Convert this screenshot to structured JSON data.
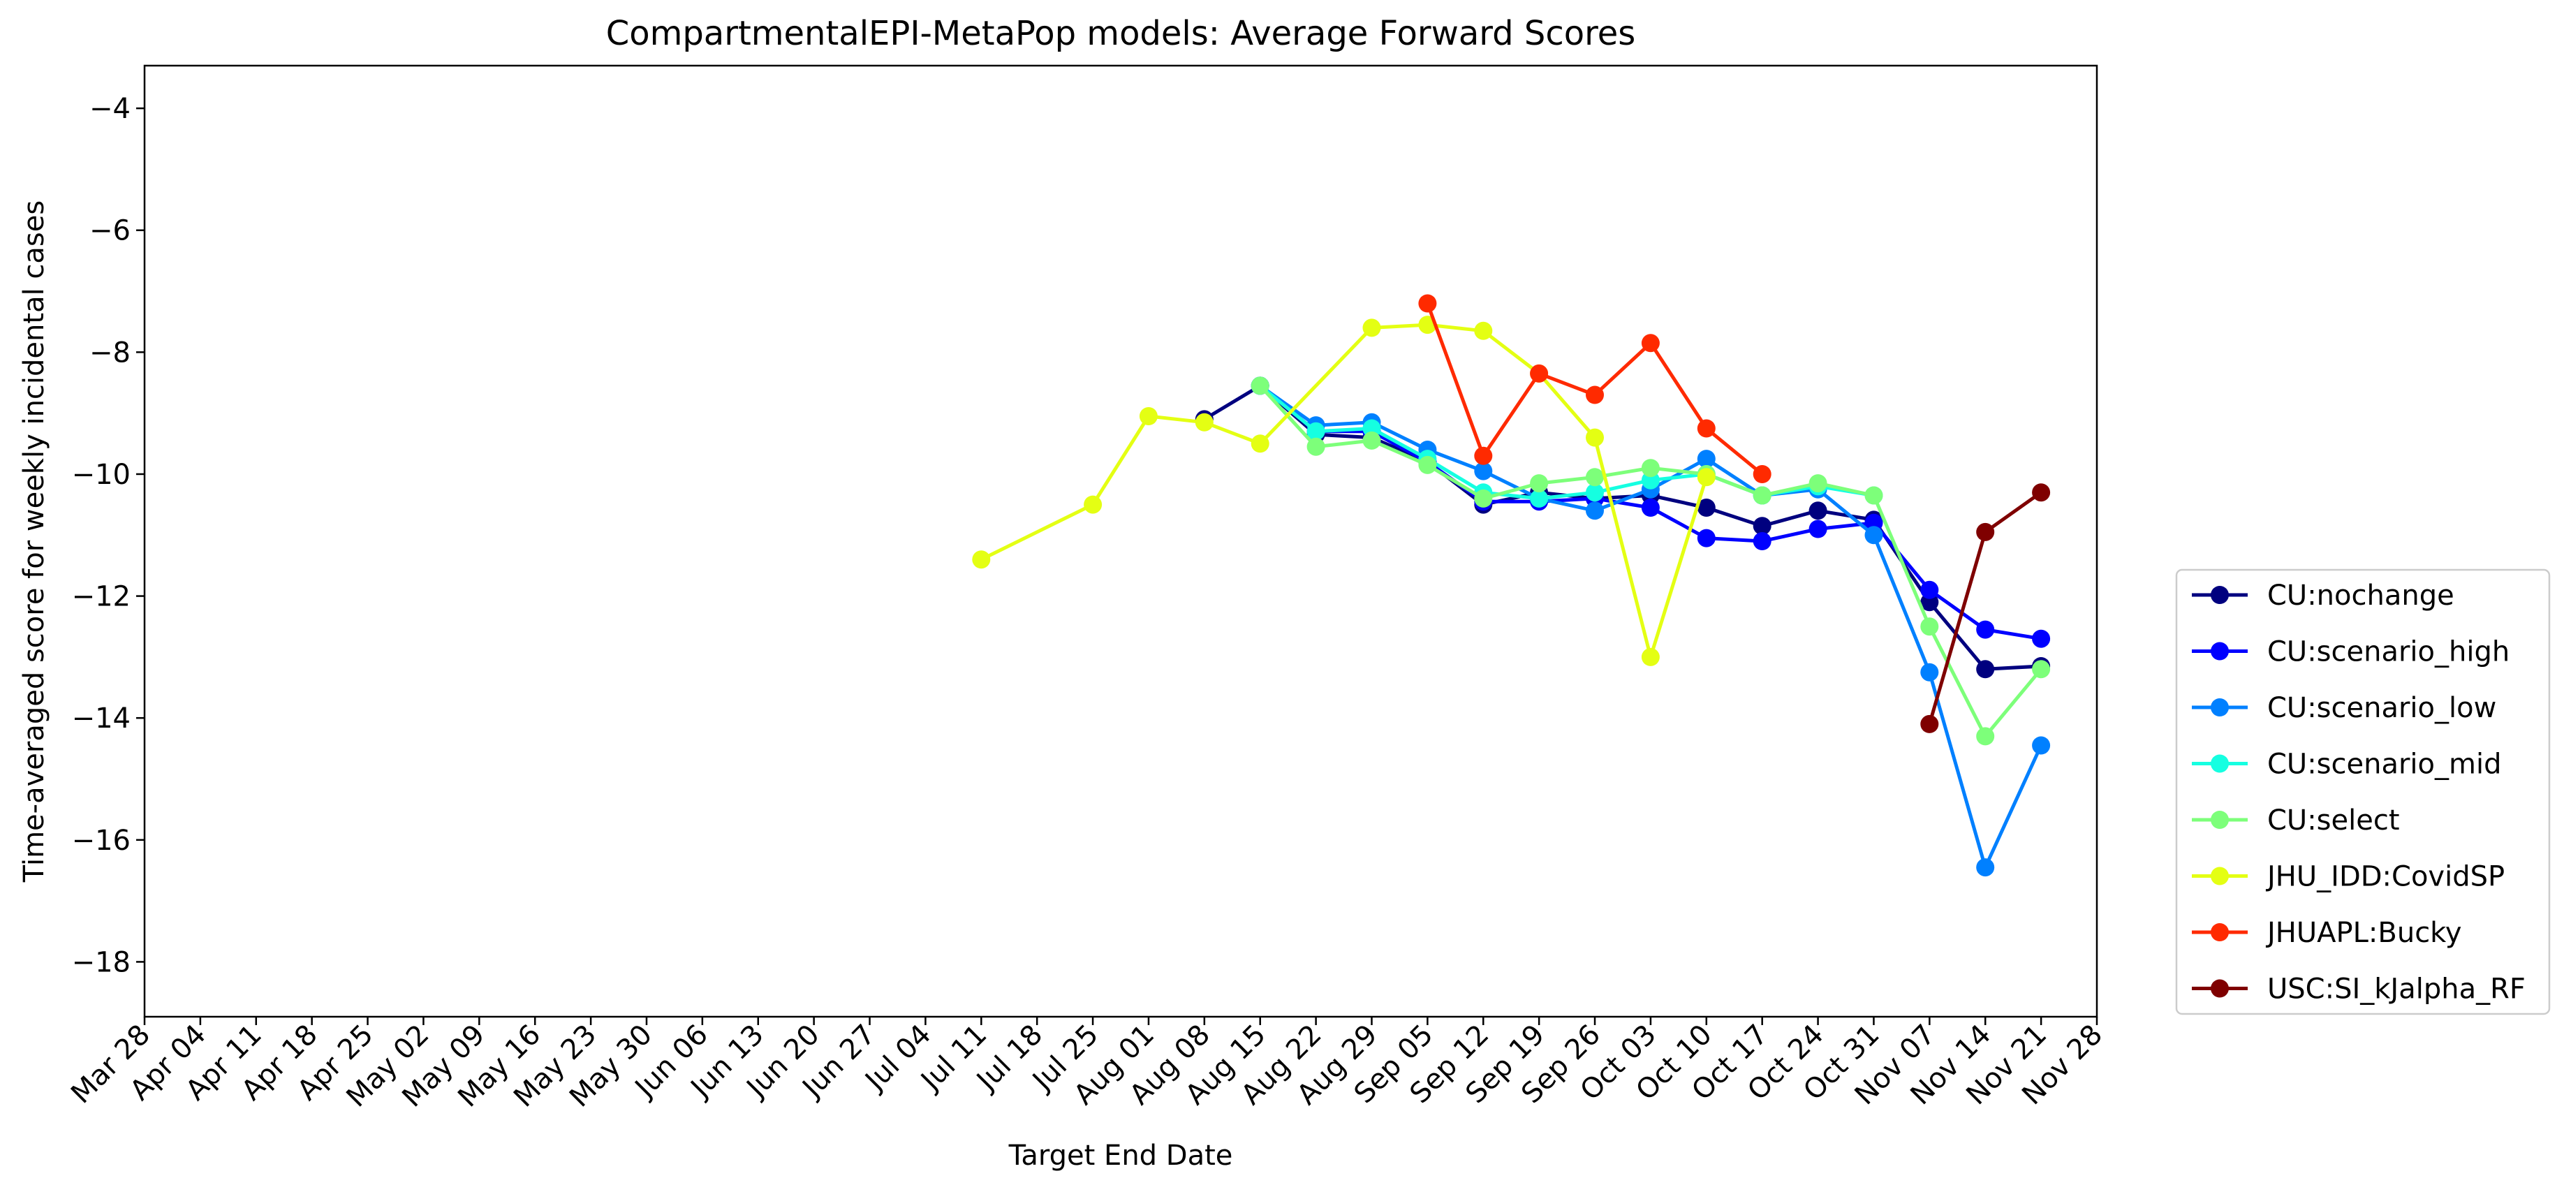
{
  "chart_data": {
    "type": "line",
    "title": "CompartmentalEPI-MetaPop models: Average Forward Scores",
    "xlabel": "Target End Date",
    "ylabel": "Time-averaged score for weekly incidental cases",
    "x_ticks": [
      "Mar 28",
      "Apr 04",
      "Apr 11",
      "Apr 18",
      "Apr 25",
      "May 02",
      "May 09",
      "May 16",
      "May 23",
      "May 30",
      "Jun 06",
      "Jun 13",
      "Jun 20",
      "Jun 27",
      "Jul 04",
      "Jul 11",
      "Jul 18",
      "Jul 25",
      "Aug 01",
      "Aug 08",
      "Aug 15",
      "Aug 22",
      "Aug 29",
      "Sep 05",
      "Sep 12",
      "Sep 19",
      "Sep 26",
      "Oct 03",
      "Oct 10",
      "Oct 17",
      "Oct 24",
      "Oct 31",
      "Nov 07",
      "Nov 14",
      "Nov 21",
      "Nov 28"
    ],
    "y_ticks": [
      "−4",
      "−6",
      "−8",
      "−10",
      "−12",
      "−14",
      "−16",
      "−18"
    ],
    "y_tick_values": [
      -4,
      -6,
      -8,
      -10,
      -12,
      -14,
      -16,
      -18
    ],
    "ylim": [
      -18.9,
      -3.3
    ],
    "xlim": [
      "Mar 28",
      "Nov 28"
    ],
    "grid": false,
    "legend_position": "right, outside plot (center-right)",
    "series": [
      {
        "name": "CU:nochange",
        "color": "#00007f",
        "x": [
          "Aug 08",
          "Aug 15",
          "Aug 22",
          "Aug 29",
          "Sep 05",
          "Sep 12",
          "Sep 19",
          "Sep 26",
          "Oct 03",
          "Oct 10",
          "Oct 17",
          "Oct 24",
          "Oct 31",
          "Nov 07",
          "Nov 14",
          "Nov 21"
        ],
        "y": [
          -9.1,
          -8.55,
          -9.35,
          -9.4,
          -9.8,
          -10.5,
          -10.3,
          -10.4,
          -10.35,
          -10.55,
          -10.85,
          -10.6,
          -10.75,
          -12.1,
          -13.2,
          -13.15
        ]
      },
      {
        "name": "CU:scenario_high",
        "color": "#0000ff",
        "x": [
          "Aug 15",
          "Aug 22",
          "Aug 29",
          "Sep 05",
          "Sep 12",
          "Sep 19",
          "Sep 26",
          "Oct 03",
          "Oct 10",
          "Oct 17",
          "Oct 24",
          "Oct 31",
          "Nov 07",
          "Nov 14",
          "Nov 21"
        ],
        "y": [
          -8.55,
          -9.3,
          -9.3,
          -9.8,
          -10.45,
          -10.45,
          -10.4,
          -10.55,
          -11.05,
          -11.1,
          -10.9,
          -10.8,
          -11.9,
          -12.55,
          -12.7
        ]
      },
      {
        "name": "CU:scenario_low",
        "color": "#0080ff",
        "x": [
          "Aug 15",
          "Aug 22",
          "Aug 29",
          "Sep 05",
          "Sep 12",
          "Sep 19",
          "Sep 26",
          "Oct 03",
          "Oct 10",
          "Oct 17",
          "Oct 24",
          "Oct 31",
          "Nov 07",
          "Nov 14",
          "Nov 21"
        ],
        "y": [
          -8.55,
          -9.2,
          -9.15,
          -9.6,
          -9.95,
          -10.4,
          -10.6,
          -10.25,
          -9.75,
          -10.35,
          -10.25,
          -11.0,
          -13.25,
          -16.45,
          -14.45
        ]
      },
      {
        "name": "CU:scenario_mid",
        "color": "#15ffe1",
        "x": [
          "Aug 15",
          "Aug 22",
          "Aug 29",
          "Sep 05",
          "Sep 12",
          "Sep 19",
          "Sep 26",
          "Oct 03",
          "Oct 10",
          "Oct 17",
          "Oct 24",
          "Oct 31"
        ],
        "y": [
          -8.55,
          -9.3,
          -9.25,
          -9.75,
          -10.3,
          -10.4,
          -10.3,
          -10.1,
          -10.0,
          -10.35,
          -10.2,
          -10.35
        ]
      },
      {
        "name": "CU:select",
        "color": "#7dff7a",
        "x": [
          "Aug 15",
          "Aug 22",
          "Aug 29",
          "Sep 05",
          "Sep 12",
          "Sep 19",
          "Sep 26",
          "Oct 03",
          "Oct 10",
          "Oct 17",
          "Oct 24",
          "Oct 31",
          "Nov 07",
          "Nov 14",
          "Nov 21"
        ],
        "y": [
          -8.55,
          -9.55,
          -9.45,
          -9.85,
          -10.4,
          -10.15,
          -10.05,
          -9.9,
          -10.0,
          -10.35,
          -10.15,
          -10.35,
          -12.5,
          -14.3,
          -13.2
        ]
      },
      {
        "name": "JHU_IDD:CovidSP",
        "color": "#e4ff13",
        "x": [
          "Jul 11",
          "Jul 25",
          "Aug 01",
          "Aug 08",
          "Aug 15",
          "Aug 29",
          "Sep 05",
          "Sep 12",
          "Sep 19",
          "Sep 26",
          "Oct 03",
          "Oct 10"
        ],
        "y": [
          -11.4,
          -10.5,
          -9.05,
          -9.15,
          -9.5,
          -7.6,
          -7.55,
          -7.65,
          -8.35,
          -9.4,
          -13.0,
          -10.05
        ]
      },
      {
        "name": "JHUAPL:Bucky",
        "color": "#ff2a00",
        "x": [
          "Sep 05",
          "Sep 12",
          "Sep 19",
          "Sep 26",
          "Oct 03",
          "Oct 10",
          "Oct 17"
        ],
        "y": [
          -7.2,
          -9.7,
          -8.35,
          -8.7,
          -7.85,
          -9.25,
          -10.0
        ]
      },
      {
        "name": "USC:SI_kJalpha_RF",
        "color": "#7f0000",
        "x": [
          "Nov 07",
          "Nov 14",
          "Nov 21"
        ],
        "y": [
          -14.1,
          -10.95,
          -10.3
        ]
      }
    ]
  }
}
